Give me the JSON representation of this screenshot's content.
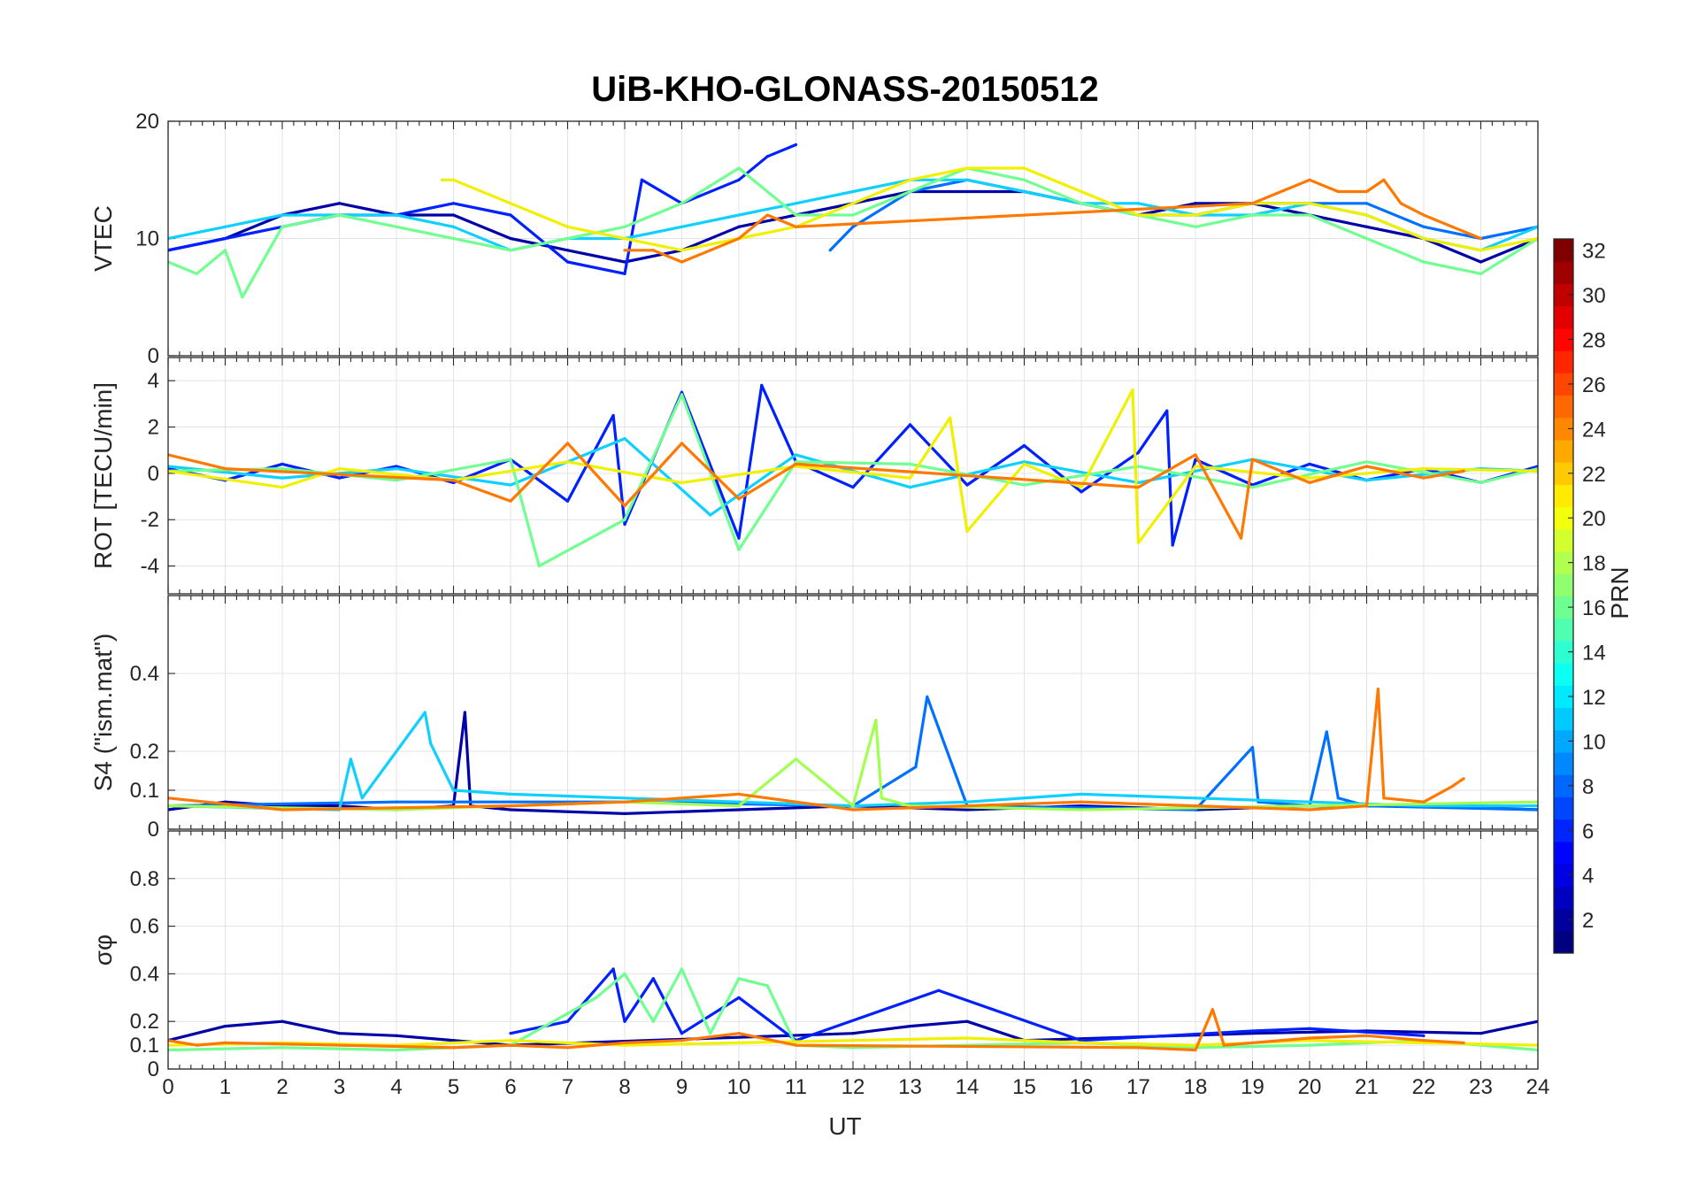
{
  "figure": {
    "title": "UiB-KHO-GLONASS-20150512",
    "xlabel": "UT",
    "x_ticks": [
      "0",
      "1",
      "2",
      "3",
      "4",
      "5",
      "6",
      "7",
      "8",
      "9",
      "10",
      "11",
      "12",
      "13",
      "14",
      "15",
      "16",
      "17",
      "18",
      "19",
      "20",
      "21",
      "22",
      "23",
      "24"
    ]
  },
  "colorbar": {
    "label": "PRN",
    "ticks": [
      "2",
      "4",
      "6",
      "8",
      "10",
      "12",
      "14",
      "16",
      "18",
      "20",
      "22",
      "24",
      "26",
      "28",
      "30",
      "32"
    ],
    "range": [
      1,
      32
    ],
    "colormap": "jet"
  },
  "chart_data": [
    {
      "type": "line",
      "panel": "VTEC",
      "title": "UiB-KHO-GLONASS-20150512",
      "ylabel": "VTEC",
      "xlabel": "UT",
      "xlim": [
        0,
        24
      ],
      "ylim": [
        0,
        20
      ],
      "y_ticks": [
        "0",
        "10",
        "20"
      ],
      "grid": true,
      "series": [
        {
          "prn": 2,
          "color": "#0000a8",
          "x": [
            0,
            1,
            2,
            3,
            4,
            5,
            6,
            7,
            8,
            9,
            10,
            11,
            12,
            13,
            14,
            15,
            16,
            17,
            18,
            19,
            20,
            21,
            22,
            23,
            24
          ],
          "values": [
            9,
            10,
            12,
            13,
            12,
            12,
            10,
            9,
            8,
            9,
            11,
            12,
            13,
            14,
            14,
            14,
            13,
            12,
            13,
            13,
            12,
            11,
            10,
            8,
            10
          ]
        },
        {
          "prn": 5,
          "color": "#0020ff",
          "x": [
            0,
            1,
            2,
            3,
            4,
            5,
            6,
            7,
            8,
            8.3,
            9,
            10,
            10.5,
            11
          ],
          "values": [
            9,
            10,
            11,
            12,
            12,
            13,
            12,
            8,
            7,
            15,
            13,
            15,
            17,
            18
          ]
        },
        {
          "prn": 8,
          "color": "#0070ff",
          "x": [
            11.6,
            12,
            13,
            14,
            15,
            16,
            17,
            18,
            19,
            20,
            21,
            22,
            23,
            24
          ],
          "values": [
            9,
            11,
            14,
            15,
            14,
            13,
            12,
            12,
            13,
            13,
            13,
            11,
            10,
            11
          ]
        },
        {
          "prn": 12,
          "color": "#10d0ff",
          "x": [
            0,
            1,
            2,
            3,
            4,
            5,
            6,
            7,
            8,
            9,
            10,
            11,
            12,
            13,
            14,
            15,
            16,
            17,
            18,
            19,
            20,
            21,
            22,
            23,
            24
          ],
          "values": [
            10,
            11,
            12,
            12,
            12,
            11,
            9,
            10,
            10,
            11,
            12,
            13,
            14,
            15,
            15,
            14,
            13,
            13,
            12,
            12,
            13,
            12,
            10,
            9,
            11
          ]
        },
        {
          "prn": 16,
          "color": "#70ff90",
          "x": [
            0,
            0.5,
            1,
            1.3,
            2,
            3,
            6,
            7,
            8,
            9,
            10,
            11,
            12,
            13,
            14,
            15,
            16,
            17,
            18,
            19,
            20,
            21,
            22,
            23,
            24
          ],
          "values": [
            8,
            7,
            9,
            5,
            11,
            12,
            9,
            10,
            11,
            13,
            16,
            12,
            12,
            14,
            16,
            15,
            13,
            12,
            11,
            12,
            12,
            10,
            8,
            7,
            10
          ]
        },
        {
          "prn": 20,
          "color": "#f0f000",
          "x": [
            4.8,
            5,
            6,
            7,
            8,
            9,
            10,
            11,
            12,
            13,
            14,
            15,
            16,
            17,
            18,
            19,
            20,
            21,
            22,
            23,
            24
          ],
          "values": [
            15,
            15,
            13,
            11,
            10,
            9,
            10,
            11,
            13,
            15,
            16,
            16,
            14,
            12,
            12,
            13,
            13,
            12,
            10,
            9,
            10
          ]
        },
        {
          "prn": 24,
          "color": "#ff7800",
          "x": [
            8,
            8.5,
            9,
            9.5,
            10,
            10.5,
            11,
            19,
            19.5,
            20,
            20.5,
            21,
            21.3,
            21.6,
            22,
            22.5,
            23
          ],
          "values": [
            9,
            9,
            8,
            9,
            10,
            12,
            11,
            13,
            14,
            15,
            14,
            14,
            15,
            13,
            12,
            11,
            10
          ]
        }
      ]
    },
    {
      "type": "line",
      "panel": "ROT",
      "ylabel": "ROT [TECU/min]",
      "xlabel": "UT",
      "xlim": [
        0,
        24
      ],
      "ylim": [
        -5.2,
        5
      ],
      "y_ticks": [
        "-4",
        "-2",
        "0",
        "2",
        "4"
      ],
      "grid": true,
      "series": [
        {
          "prn": 5,
          "color": "#0020ff",
          "x": [
            0,
            1,
            2,
            3,
            4,
            5,
            6,
            7,
            7.8,
            8,
            9,
            10,
            10.4,
            11,
            12,
            13,
            14,
            15,
            16,
            17,
            17.5,
            17.6,
            18,
            19,
            20,
            21,
            22,
            23,
            24
          ],
          "values": [
            0.2,
            -0.3,
            0.4,
            -0.2,
            0.3,
            -0.4,
            0.6,
            -1.2,
            2.5,
            -2.2,
            3.5,
            -2.8,
            3.8,
            0.5,
            -0.6,
            2.1,
            -0.5,
            1.2,
            -0.8,
            0.9,
            2.7,
            -3.1,
            0.6,
            -0.5,
            0.4,
            -0.3,
            0.2,
            -0.4,
            0.3
          ]
        },
        {
          "prn": 12,
          "color": "#10d0ff",
          "x": [
            0,
            2,
            4,
            6,
            8,
            9.5,
            11,
            13,
            15,
            17,
            19,
            21,
            23,
            24
          ],
          "values": [
            0.3,
            -0.2,
            0.2,
            -0.5,
            1.5,
            -1.8,
            0.8,
            -0.6,
            0.5,
            -0.4,
            0.6,
            -0.3,
            0.2,
            0.1
          ]
        },
        {
          "prn": 16,
          "color": "#70ff90",
          "x": [
            0,
            2,
            4,
            6,
            6.5,
            8,
            9,
            10,
            11,
            13,
            15,
            17,
            19,
            21,
            23,
            24
          ],
          "values": [
            0.1,
            0.2,
            -0.3,
            0.6,
            -4.0,
            -2.0,
            3.4,
            -3.3,
            0.5,
            0.4,
            -0.5,
            0.3,
            -0.6,
            0.5,
            -0.4,
            0.2
          ]
        },
        {
          "prn": 20,
          "color": "#f0f000",
          "x": [
            0,
            2,
            3,
            5,
            7,
            9,
            11,
            13,
            13.7,
            14,
            15,
            16,
            16.9,
            17,
            18,
            20,
            22,
            24
          ],
          "values": [
            0.1,
            -0.6,
            0.2,
            -0.3,
            0.5,
            -0.4,
            0.3,
            -0.2,
            2.4,
            -2.5,
            0.4,
            -0.6,
            3.6,
            -3.0,
            0.3,
            -0.2,
            0.2,
            0.1
          ]
        },
        {
          "prn": 24,
          "color": "#ff7800",
          "x": [
            0,
            1,
            5,
            6,
            7,
            8,
            9,
            10,
            11,
            17,
            18,
            18.8,
            19,
            20,
            21,
            22,
            22.7
          ],
          "values": [
            0.8,
            0.2,
            -0.3,
            -1.2,
            1.3,
            -1.4,
            1.3,
            -1.1,
            0.4,
            -0.6,
            0.8,
            -2.8,
            0.6,
            -0.4,
            0.3,
            -0.2,
            0.1
          ]
        }
      ]
    },
    {
      "type": "line",
      "panel": "S4",
      "ylabel": "S4 (\"ism.mat\")",
      "xlabel": "UT",
      "xlim": [
        0,
        24
      ],
      "ylim": [
        0,
        0.6
      ],
      "y_ticks": [
        "0",
        "0.1",
        "0.2",
        "0.4"
      ],
      "grid": true,
      "series": [
        {
          "prn": 2,
          "color": "#0000a8",
          "x": [
            0,
            1,
            2,
            3,
            4,
            5,
            5.2,
            5.3,
            6,
            8,
            10,
            12,
            14,
            16,
            18,
            20,
            22,
            24
          ],
          "values": [
            0.05,
            0.07,
            0.06,
            0.06,
            0.05,
            0.06,
            0.3,
            0.06,
            0.05,
            0.04,
            0.05,
            0.06,
            0.05,
            0.06,
            0.05,
            0.06,
            0.06,
            0.05
          ]
        },
        {
          "prn": 8,
          "color": "#0070ff",
          "x": [
            0,
            4,
            8,
            12,
            13.1,
            13.3,
            14,
            18,
            19,
            19.1,
            20,
            20.3,
            20.5,
            21,
            24
          ],
          "values": [
            0.06,
            0.07,
            0.07,
            0.06,
            0.16,
            0.34,
            0.06,
            0.05,
            0.21,
            0.07,
            0.06,
            0.25,
            0.08,
            0.06,
            0.05
          ]
        },
        {
          "prn": 12,
          "color": "#10d0ff",
          "x": [
            0,
            3,
            3.2,
            3.4,
            4.5,
            4.6,
            5,
            6,
            8,
            10,
            12,
            14,
            16,
            18,
            20,
            22,
            24
          ],
          "values": [
            0.06,
            0.05,
            0.18,
            0.08,
            0.3,
            0.22,
            0.1,
            0.09,
            0.08,
            0.07,
            0.06,
            0.07,
            0.09,
            0.08,
            0.07,
            0.06,
            0.06
          ]
        },
        {
          "prn": 17,
          "color": "#a0ff50",
          "x": [
            0,
            4,
            8,
            10,
            11,
            12,
            12.4,
            12.5,
            13,
            16,
            20,
            24
          ],
          "values": [
            0.06,
            0.05,
            0.07,
            0.06,
            0.18,
            0.06,
            0.28,
            0.08,
            0.06,
            0.05,
            0.06,
            0.07
          ]
        },
        {
          "prn": 24,
          "color": "#ff7800",
          "x": [
            0,
            2,
            6,
            8,
            10,
            12,
            16,
            18,
            20,
            21,
            21.2,
            21.3,
            22,
            22.5,
            22.7
          ],
          "values": [
            0.08,
            0.05,
            0.06,
            0.07,
            0.09,
            0.05,
            0.07,
            0.06,
            0.05,
            0.06,
            0.36,
            0.08,
            0.07,
            0.11,
            0.13
          ]
        }
      ]
    },
    {
      "type": "line",
      "panel": "sigma_phi",
      "ylabel": "σφ",
      "xlabel": "UT",
      "xlim": [
        0,
        24
      ],
      "ylim": [
        0,
        1
      ],
      "y_ticks": [
        "0",
        "0.1",
        "0.2",
        "0.4",
        "0.6",
        "0.8"
      ],
      "grid": true,
      "series": [
        {
          "prn": 2,
          "color": "#0000a8",
          "x": [
            0,
            1,
            2,
            3,
            4,
            5,
            6,
            12,
            13,
            14,
            15,
            19,
            21,
            23,
            24
          ],
          "values": [
            0.12,
            0.18,
            0.2,
            0.15,
            0.14,
            0.12,
            0.1,
            0.15,
            0.18,
            0.2,
            0.12,
            0.15,
            0.16,
            0.15,
            0.2
          ]
        },
        {
          "prn": 5,
          "color": "#0020ff",
          "x": [
            6,
            7,
            7.8,
            8,
            8.5,
            9,
            10,
            11,
            13.5,
            16,
            19,
            20,
            22
          ],
          "values": [
            0.15,
            0.2,
            0.42,
            0.2,
            0.38,
            0.15,
            0.3,
            0.12,
            0.33,
            0.12,
            0.16,
            0.17,
            0.14
          ]
        },
        {
          "prn": 16,
          "color": "#70ff90",
          "x": [
            0,
            2,
            4,
            6,
            7.5,
            8,
            8.5,
            9,
            9.5,
            10,
            10.5,
            11,
            12,
            14,
            16,
            18,
            20,
            22,
            24
          ],
          "values": [
            0.08,
            0.09,
            0.08,
            0.1,
            0.3,
            0.4,
            0.2,
            0.42,
            0.15,
            0.38,
            0.35,
            0.1,
            0.09,
            0.1,
            0.11,
            0.09,
            0.1,
            0.12,
            0.08
          ]
        },
        {
          "prn": 20,
          "color": "#f0f000",
          "x": [
            0,
            2,
            4,
            6,
            8,
            10,
            12,
            14,
            16,
            18,
            20,
            22,
            24
          ],
          "values": [
            0.1,
            0.11,
            0.1,
            0.12,
            0.1,
            0.11,
            0.12,
            0.13,
            0.11,
            0.1,
            0.12,
            0.11,
            0.1
          ]
        },
        {
          "prn": 24,
          "color": "#ff7800",
          "x": [
            0,
            0.5,
            1,
            5,
            6,
            7,
            8,
            9,
            10,
            11,
            17,
            18,
            18.3,
            18.5,
            20,
            21,
            22,
            22.7
          ],
          "values": [
            0.12,
            0.1,
            0.11,
            0.09,
            0.1,
            0.09,
            0.11,
            0.12,
            0.15,
            0.1,
            0.09,
            0.08,
            0.25,
            0.1,
            0.13,
            0.14,
            0.12,
            0.11
          ]
        }
      ]
    }
  ]
}
